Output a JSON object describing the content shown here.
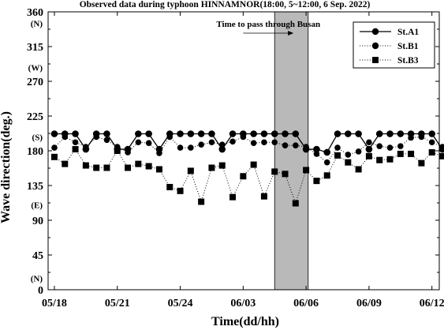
{
  "chart_data": {
    "type": "line",
    "title": "Observed data during typhoon HINNAMNOR(18:00, 5~12:00, 6  Sep. 2022)",
    "xlabel": "Time(dd/hh)",
    "ylabel": "Wave direction(deg.)",
    "ylim": [
      0,
      360
    ],
    "yticks": [
      "0",
      "45",
      "90",
      "135",
      "180",
      "225",
      "270",
      "315",
      "360"
    ],
    "ytick_sublabels": [
      {
        "value": 15,
        "text": "(N)"
      },
      {
        "value": 110,
        "text": "(E)"
      },
      {
        "value": 198,
        "text": "(S)"
      },
      {
        "value": 288,
        "text": "(W)"
      },
      {
        "value": 345,
        "text": "(N)"
      }
    ],
    "xticks": [
      "05/18",
      "05/21",
      "05/24",
      "06/03",
      "06/06",
      "06/09",
      "06/12"
    ],
    "xtick_positions": [
      0,
      6,
      12,
      18,
      24,
      30,
      36
    ],
    "n_points": 40,
    "x_range": [
      -0.6,
      36.7
    ],
    "shaded_region": {
      "from": 21,
      "to": 24.2,
      "color": "#b9b9b9"
    },
    "annotation": "Time to pass through Busan",
    "annotation_range": [
      18,
      22.8
    ],
    "grid": false,
    "legend": "top-right",
    "series": [
      {
        "name": "St.A1",
        "line": "solid",
        "marker": "circle",
        "values": [
          202,
          202,
          202,
          182,
          202,
          202,
          182,
          182,
          202,
          202,
          182,
          202,
          202,
          202,
          202,
          202,
          182,
          202,
          202,
          202,
          202,
          202,
          202,
          202,
          182,
          182,
          178,
          202,
          202,
          202,
          182,
          202,
          202,
          202,
          202,
          202,
          202,
          182,
          182,
          202
        ]
      },
      {
        "name": "St.B1",
        "line": "dotted",
        "marker": "circle",
        "values": [
          184,
          198,
          191,
          185,
          198,
          194,
          185,
          178,
          191,
          190,
          177,
          198,
          184,
          184,
          188,
          191,
          188,
          192,
          198,
          190,
          191,
          191,
          187,
          187,
          185,
          176,
          165,
          184,
          175,
          179,
          191,
          186,
          184,
          186,
          197,
          198,
          191,
          185,
          185,
          185
        ]
      },
      {
        "name": "St.B3",
        "line": "dotted",
        "marker": "square",
        "values": [
          172,
          163,
          182,
          161,
          158,
          158,
          180,
          158,
          163,
          160,
          156,
          133,
          128,
          154,
          114,
          158,
          161,
          120,
          147,
          162,
          121,
          153,
          150,
          112,
          155,
          141,
          148,
          174,
          165,
          156,
          173,
          168,
          169,
          176,
          176,
          164,
          178,
          173,
          172,
          175
        ]
      }
    ]
  }
}
